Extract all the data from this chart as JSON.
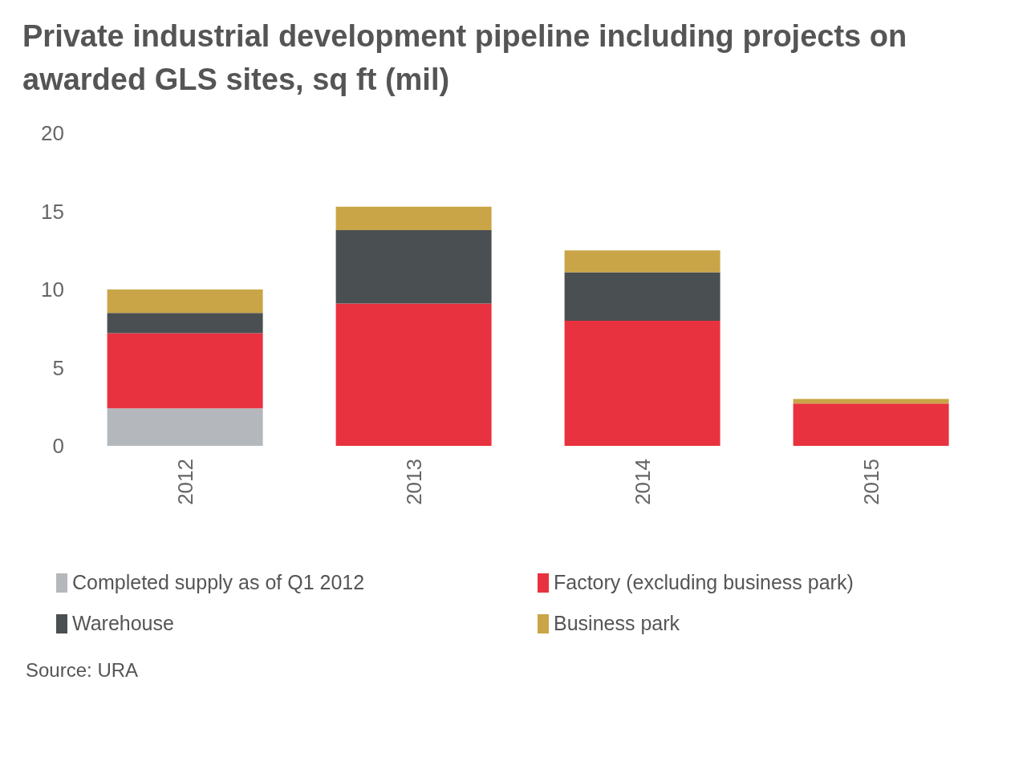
{
  "chart_data": {
    "type": "bar",
    "title": "Private industrial development pipeline including projects on awarded GLS sites, sq ft (mil)",
    "categories": [
      "2012",
      "2013",
      "2014",
      "2015"
    ],
    "stacked": true,
    "series": [
      {
        "name": "Completed supply as of Q1 2012",
        "color": "#b4b8bc",
        "values": [
          2.4,
          0,
          0,
          0
        ]
      },
      {
        "name": "Factory (excluding business park)",
        "color": "#e8323f",
        "values": [
          4.8,
          9.1,
          8.0,
          2.7
        ]
      },
      {
        "name": "Warehouse",
        "color": "#4a4f52",
        "values": [
          1.3,
          4.7,
          3.1,
          0
        ]
      },
      {
        "name": "Business park",
        "color": "#c9a548",
        "values": [
          1.5,
          1.5,
          1.4,
          0.3
        ]
      }
    ],
    "ylim": [
      0,
      20
    ],
    "yticks": [
      0,
      5,
      10,
      15,
      20
    ],
    "grid": false,
    "legend": "bottom",
    "annotations": [
      "Source: URA"
    ]
  }
}
